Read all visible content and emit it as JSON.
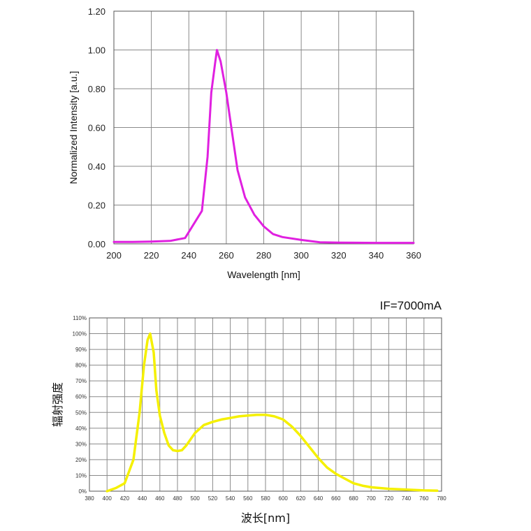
{
  "chart_data": [
    {
      "type": "line",
      "xlabel": "Wavelength [nm]",
      "ylabel": "Normalized Intensity [a.u.]",
      "xlim": [
        200,
        360
      ],
      "ylim": [
        0,
        1.2
      ],
      "xticks": [
        "200",
        "220",
        "240",
        "260",
        "280",
        "300",
        "320",
        "340",
        "360"
      ],
      "yticks": [
        "0.00",
        "0.20",
        "0.40",
        "0.60",
        "0.80",
        "1.00",
        "1.20"
      ],
      "grid": true,
      "line_color": "#e020e0",
      "series": [
        {
          "x": [
            200,
            210,
            220,
            230,
            238,
            247,
            250,
            252,
            254,
            255,
            257,
            260,
            263,
            266,
            270,
            275,
            280,
            285,
            290,
            300,
            310,
            320,
            340,
            360
          ],
          "y": [
            0.01,
            0.01,
            0.012,
            0.015,
            0.03,
            0.17,
            0.45,
            0.78,
            0.93,
            1.0,
            0.94,
            0.78,
            0.58,
            0.38,
            0.24,
            0.15,
            0.09,
            0.05,
            0.035,
            0.02,
            0.008,
            0.006,
            0.005,
            0.005
          ]
        }
      ]
    },
    {
      "type": "line",
      "annotation": "IF=7000mA",
      "xlabel": "波长[nm]",
      "ylabel": "辐射强度",
      "xlim": [
        380,
        780
      ],
      "ylim": [
        0,
        110
      ],
      "xticks": [
        "380",
        "400",
        "420",
        "440",
        "460",
        "480",
        "500",
        "520",
        "540",
        "560",
        "580",
        "600",
        "620",
        "640",
        "660",
        "680",
        "700",
        "720",
        "740",
        "760",
        "780"
      ],
      "yticks": [
        "0%",
        "10%",
        "20%",
        "30%",
        "40%",
        "50%",
        "60%",
        "70%",
        "80%",
        "90%",
        "100%",
        "110%"
      ],
      "grid": true,
      "line_color": "#f5f000",
      "series": [
        {
          "x": [
            400,
            410,
            420,
            430,
            437,
            442,
            446,
            449,
            453,
            456,
            460,
            465,
            470,
            475,
            480,
            485,
            490,
            500,
            510,
            520,
            530,
            540,
            550,
            560,
            570,
            580,
            590,
            600,
            610,
            620,
            630,
            640,
            650,
            660,
            670,
            680,
            690,
            700,
            720,
            740,
            760,
            775
          ],
          "y": [
            0,
            2,
            5,
            20,
            50,
            80,
            96,
            100,
            88,
            64,
            48,
            37,
            29,
            26,
            25.5,
            26,
            29,
            37,
            42,
            44,
            45.5,
            46.5,
            47.5,
            48,
            48.5,
            48.5,
            47.5,
            45.5,
            41,
            35,
            28,
            21,
            15,
            11,
            8,
            5,
            3.5,
            2.5,
            1.5,
            1,
            0.5,
            0.3
          ]
        }
      ]
    }
  ]
}
